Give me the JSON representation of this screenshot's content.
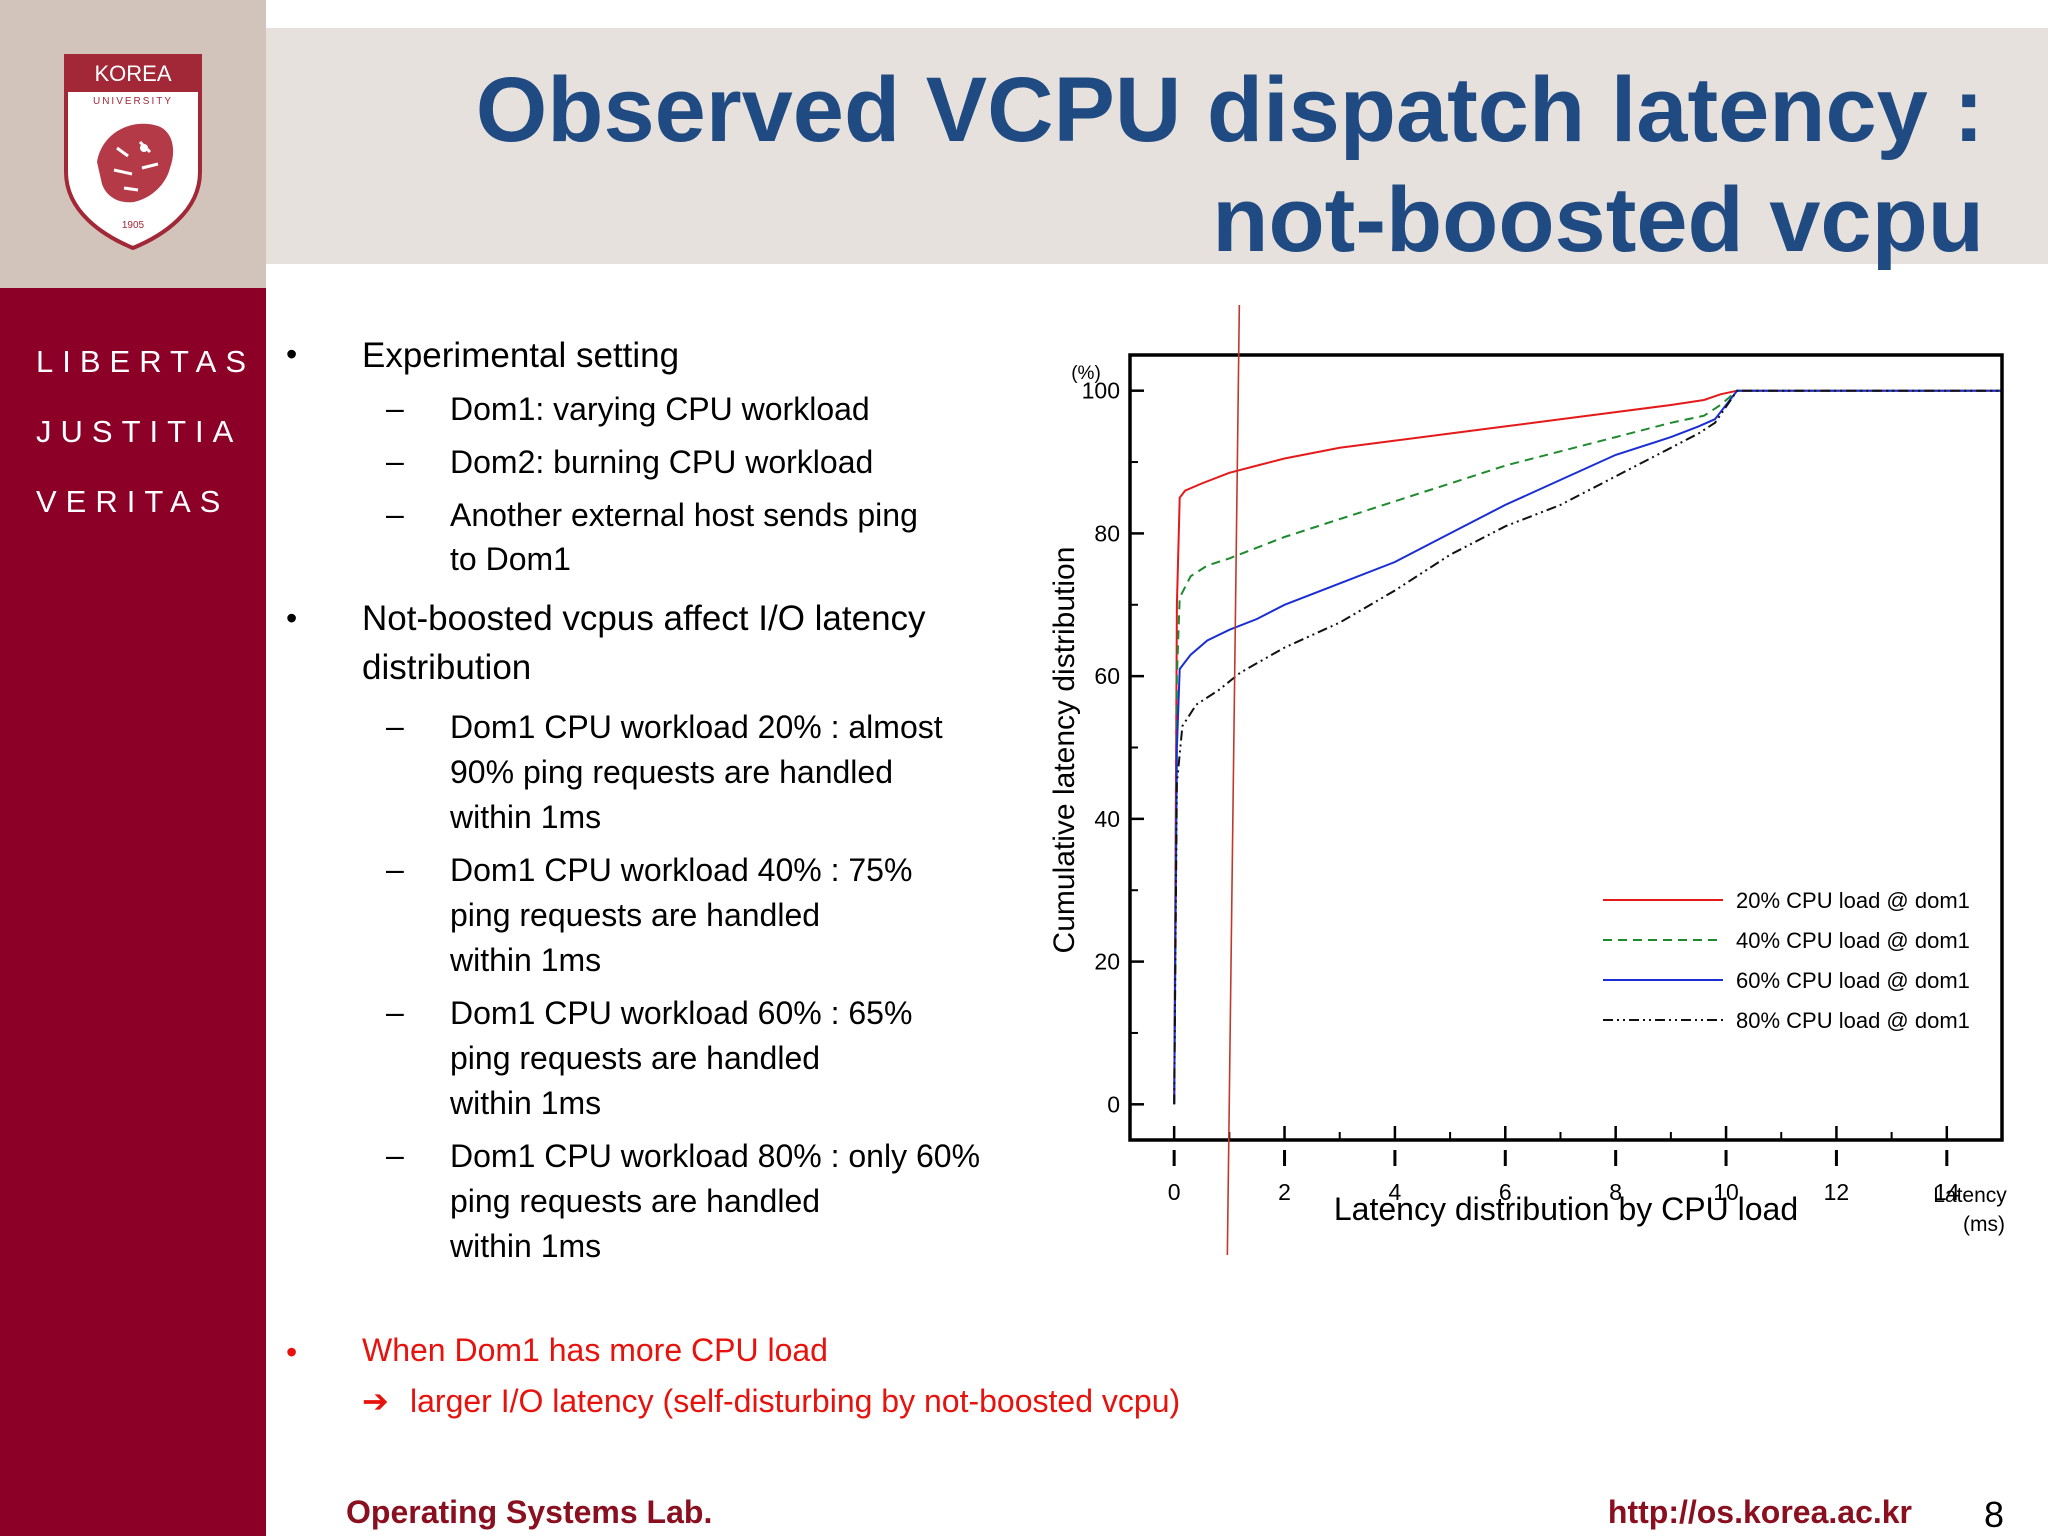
{
  "title": {
    "line1": "Observed VCPU dispatch latency :",
    "line2": "not-boosted vcpu"
  },
  "logo": {
    "top_text": "KOREA",
    "sub_text": "UNIVERSITY",
    "year": "1905"
  },
  "motto": [
    "LIBERTAS",
    "JUSTITIA",
    "VERITAS"
  ],
  "bullets": {
    "b1": "Experimental setting",
    "b1_sub": [
      "Dom1: varying CPU workload",
      "Dom2: burning CPU workload",
      "Another external host sends ping",
      "to Dom1"
    ],
    "b2_line1": "Not-boosted vcpus affect I/O latency",
    "b2_line2": "distribution",
    "b2_sub": [
      [
        "Dom1 CPU workload 20% : almost",
        "90% ping requests are handled",
        "within 1ms"
      ],
      [
        "Dom1 CPU workload 40% : 75%",
        "ping requests are handled",
        "within 1ms"
      ],
      [
        "Dom1 CPU workload 60% : 65%",
        "ping requests are handled",
        "within 1ms"
      ],
      [
        "Dom1 CPU workload 80% : only 60%",
        "ping requests are handled",
        "within 1ms"
      ]
    ],
    "b3_line1": "When Dom1 has more CPU load",
    "b3_arrow": "➔",
    "b3_line2": "larger I/O latency (self-disturbing by not-boosted vcpu)"
  },
  "footer": {
    "lab": "Operating Systems Lab.",
    "url": "http://os.korea.ac.kr",
    "page": "8"
  },
  "chart_data": {
    "type": "line",
    "xlabel": "Latency distribution by CPU load",
    "xunit_line1": "Latency",
    "xunit_line2": "(ms)",
    "ylabel": "Cumulative latency distribution",
    "yunit": "(%)",
    "xlim": [
      -0.8,
      15
    ],
    "ylim": [
      -5,
      105
    ],
    "xticks": [
      "0",
      "2",
      "4",
      "6",
      "8",
      "10",
      "12",
      "14"
    ],
    "yticks": [
      "0",
      "20",
      "40",
      "60",
      "80",
      "100"
    ],
    "legend_position": "bottom-right",
    "marker_line_x": 1.0,
    "series": [
      {
        "name": "20% CPU load @ dom1",
        "color": "#e41a1a",
        "dash": "",
        "x": [
          0,
          0.05,
          0.1,
          0.2,
          0.5,
          1.0,
          1.5,
          2.0,
          3.0,
          4.0,
          5.0,
          6.0,
          7.0,
          8.0,
          9.0,
          9.6,
          9.9,
          10.2,
          15
        ],
        "y": [
          0,
          70,
          85,
          86,
          87,
          88.5,
          89.5,
          90.5,
          92,
          93,
          94,
          95,
          96,
          97,
          98,
          98.7,
          99.5,
          100,
          100
        ]
      },
      {
        "name": "40% CPU load @ dom1",
        "color": "#1e8a2e",
        "dash": "9,6",
        "x": [
          0,
          0.05,
          0.1,
          0.3,
          0.6,
          1.0,
          1.5,
          2.0,
          3.0,
          4.0,
          5.0,
          6.0,
          7.0,
          8.0,
          9.0,
          9.6,
          9.9,
          10.2,
          15
        ],
        "y": [
          0,
          60,
          71,
          74,
          75.5,
          76.5,
          78,
          79.5,
          82,
          84.5,
          87,
          89.5,
          91.5,
          93.5,
          95.5,
          96.5,
          98,
          100,
          100
        ]
      },
      {
        "name": "60% CPU load @ dom1",
        "color": "#1a2ed4",
        "dash": "",
        "x": [
          0,
          0.05,
          0.1,
          0.3,
          0.6,
          1.0,
          1.5,
          2.0,
          3.0,
          4.0,
          5.0,
          6.0,
          7.0,
          8.0,
          9.0,
          9.5,
          9.8,
          10.2,
          15
        ],
        "y": [
          0,
          50,
          61,
          63,
          65,
          66.5,
          68,
          70,
          73,
          76,
          80,
          84,
          87.5,
          91,
          93.5,
          95,
          96,
          100,
          100
        ]
      },
      {
        "name": "80% CPU load @ dom1",
        "color": "#111111",
        "dash": "10,4,2,4,2,4",
        "x": [
          0,
          0.05,
          0.15,
          0.4,
          0.8,
          1.2,
          2.0,
          3.0,
          4.0,
          5.0,
          6.0,
          7.0,
          8.0,
          9.0,
          9.5,
          9.8,
          10.2,
          15
        ],
        "y": [
          0,
          45,
          53,
          56,
          58,
          60.5,
          64,
          67.5,
          72,
          77,
          81,
          84,
          88,
          92,
          94,
          95.5,
          100,
          100
        ]
      }
    ]
  }
}
